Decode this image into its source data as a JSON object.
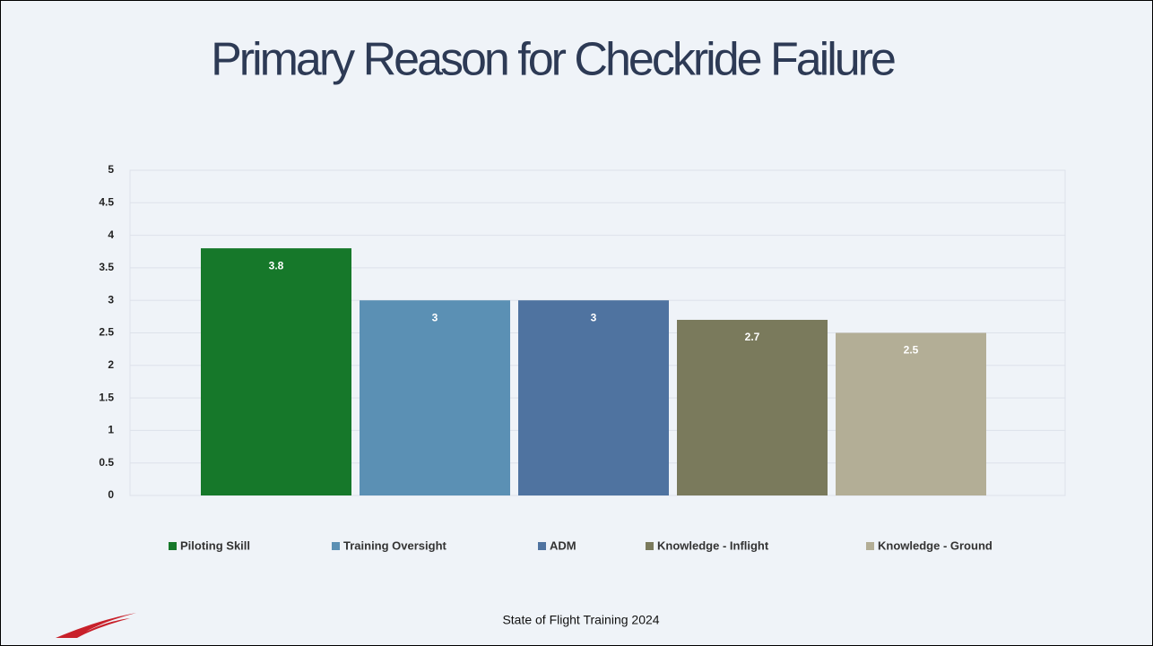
{
  "chart_data": {
    "type": "bar",
    "title": "Primary Reason for Checkride Failure",
    "series": [
      {
        "name": "Piloting Skill",
        "color": "#16782a",
        "values": [
          3.8
        ]
      },
      {
        "name": "Training Oversight",
        "color": "#5b90b4",
        "values": [
          3
        ]
      },
      {
        "name": "ADM",
        "color": "#4f73a0",
        "values": [
          3
        ]
      },
      {
        "name": "Knowledge - Inflight",
        "color": "#7a7a5c",
        "values": [
          2.7
        ]
      },
      {
        "name": "Knowledge - Ground",
        "color": "#b3ae96",
        "values": [
          2.5
        ]
      }
    ],
    "ylim": [
      0,
      5
    ],
    "yticks": [
      0,
      0.5,
      1,
      1.5,
      2,
      2.5,
      3,
      3.5,
      4,
      4.5,
      5
    ],
    "grid": true,
    "legend": "bottom"
  },
  "footer": "State of Flight Training 2024"
}
